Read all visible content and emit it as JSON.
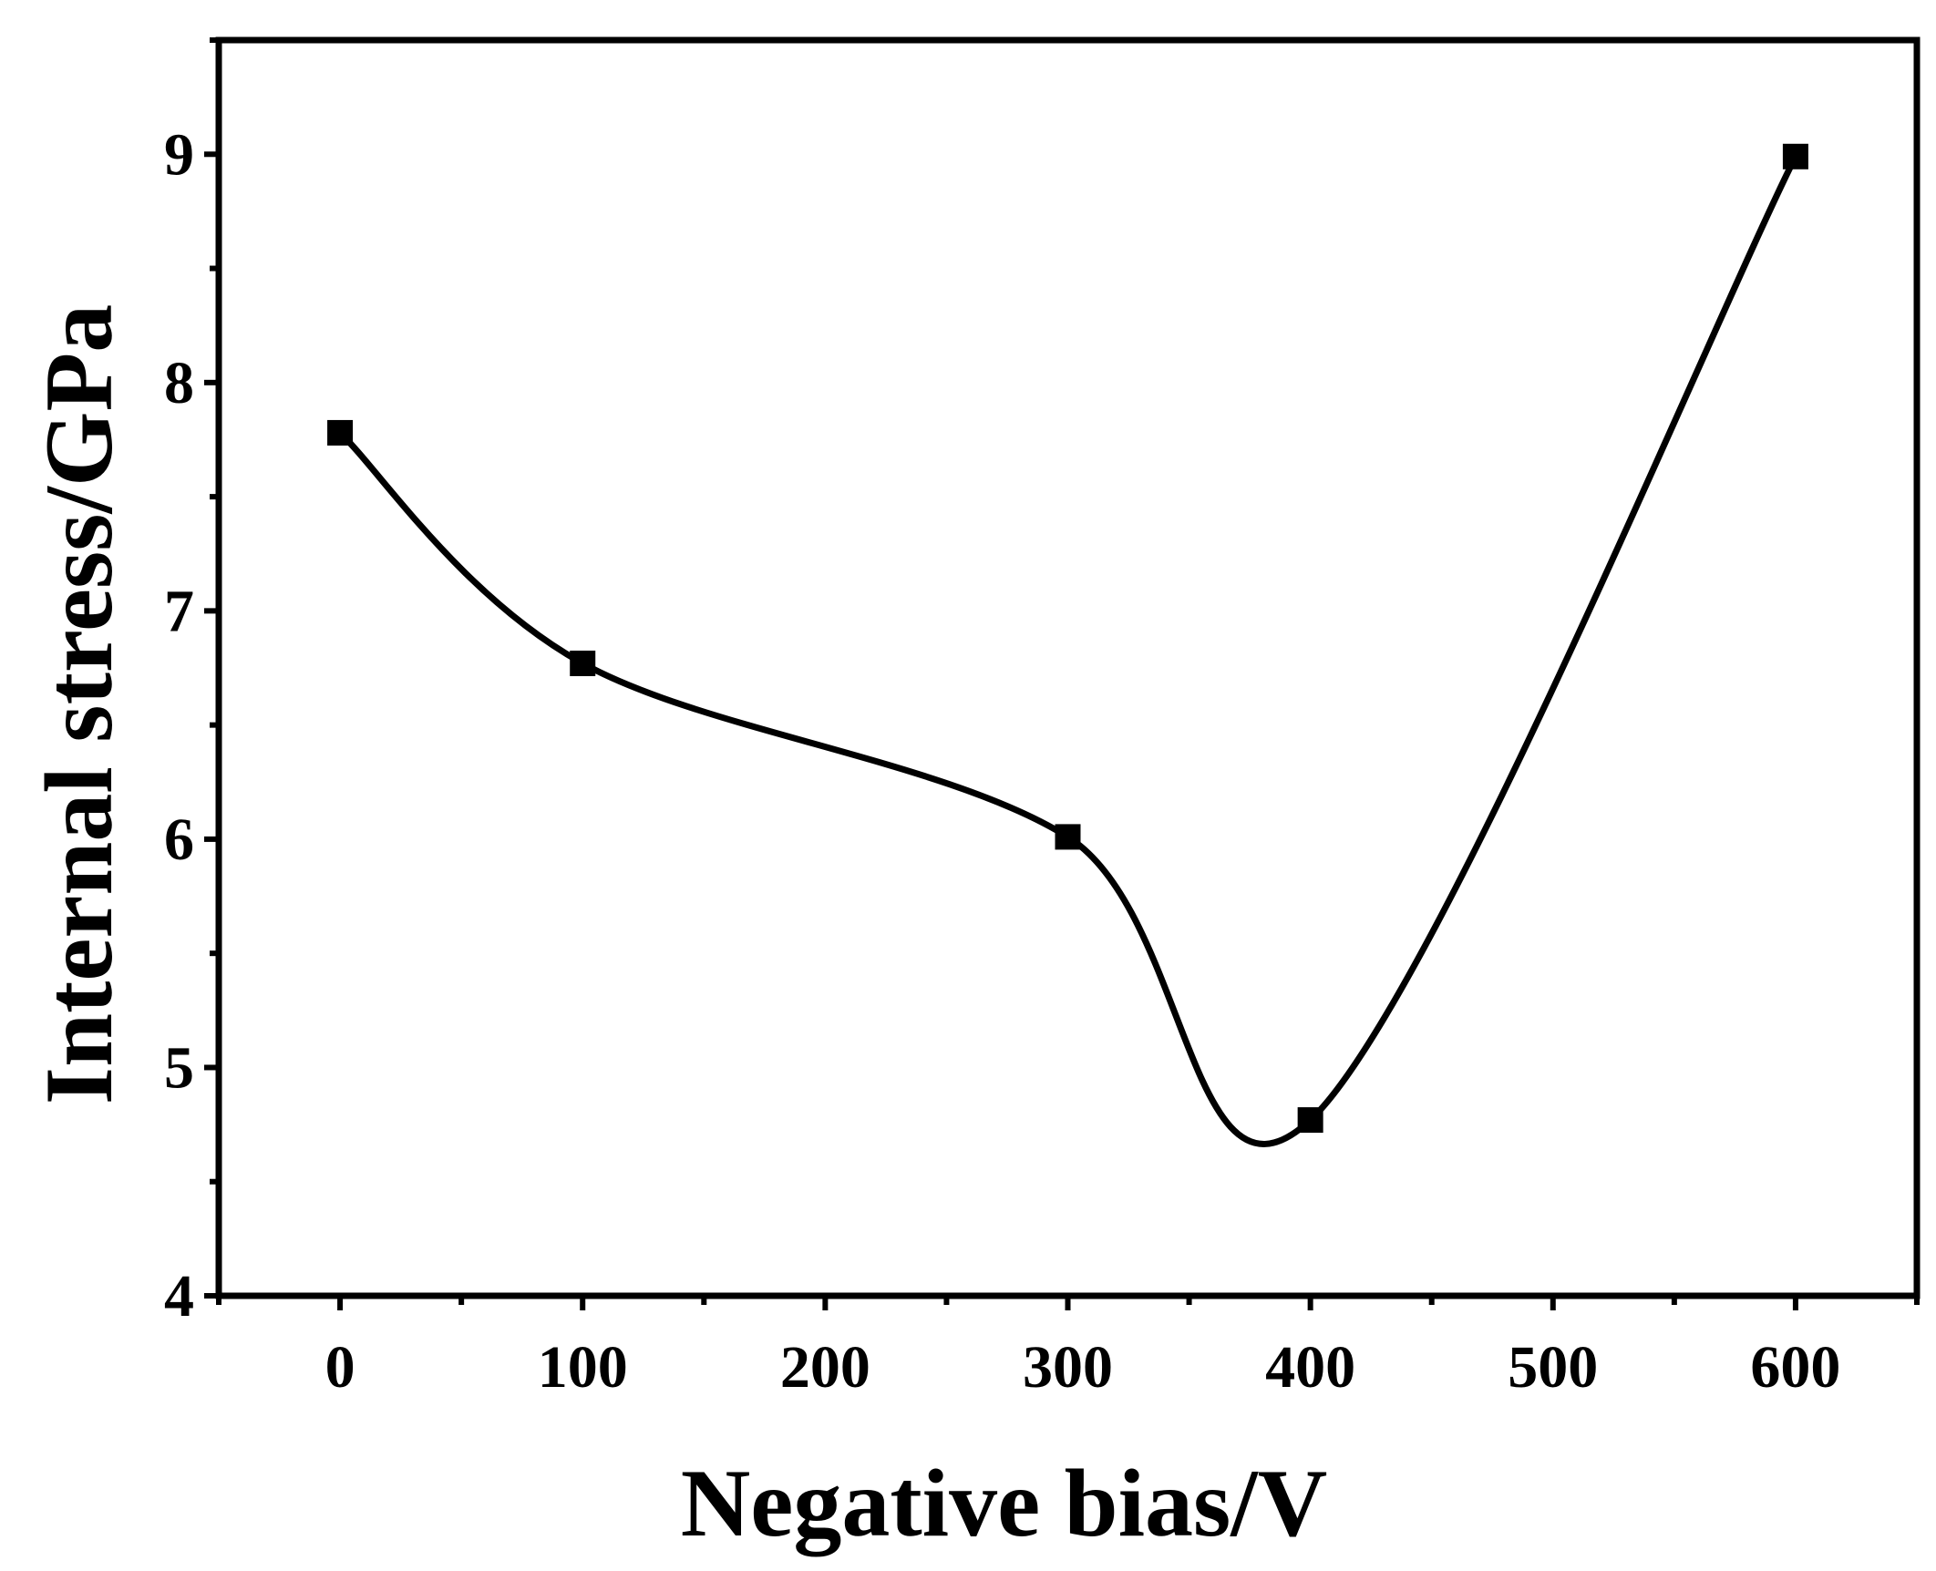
{
  "chart_data": {
    "type": "line",
    "title": "",
    "xlabel": "Negative bias/V",
    "ylabel": "Internal stress/GPa",
    "xlim": [
      -50,
      650
    ],
    "ylim": [
      4,
      9.5
    ],
    "x_ticks": [
      0,
      100,
      200,
      300,
      400,
      500,
      600
    ],
    "y_ticks": [
      4,
      5,
      6,
      7,
      8,
      9
    ],
    "grid": false,
    "line_style": "smooth",
    "marker": "square",
    "colors": {
      "line": "#000000",
      "marker": "#000000",
      "axes": "#000000"
    },
    "series": [
      {
        "x": [
          0,
          100,
          300,
          400,
          600
        ],
        "values": [
          7.78,
          6.77,
          6.01,
          4.77,
          8.99
        ]
      }
    ]
  }
}
